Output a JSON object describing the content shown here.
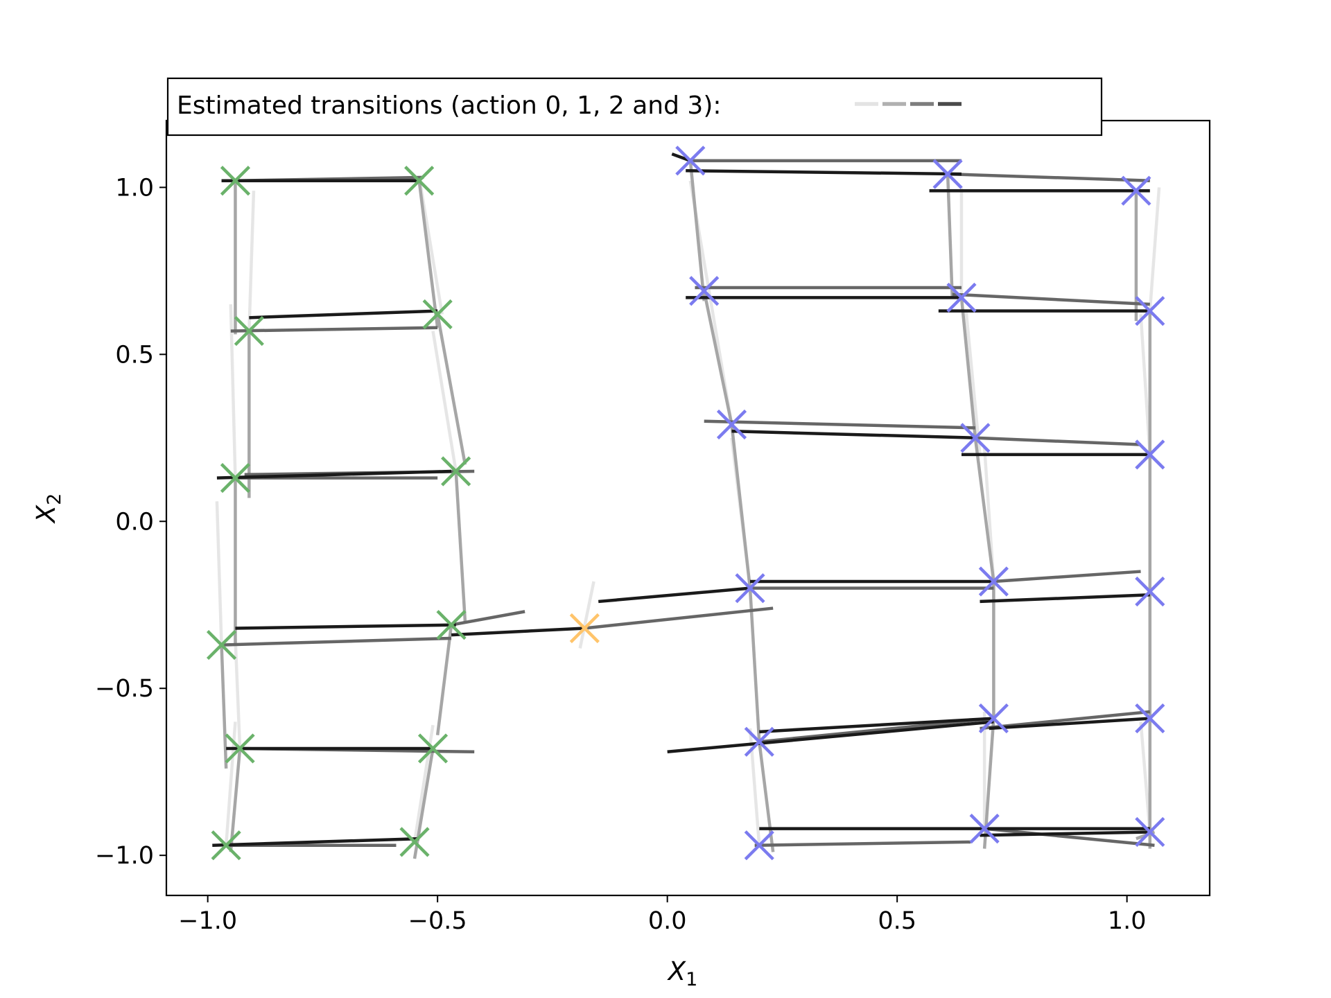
{
  "chart_data": {
    "type": "scatter",
    "title": "",
    "xlabel": "X",
    "xlabel_sub": "1",
    "ylabel": "X",
    "ylabel_sub": "2",
    "xlim": [
      -1.09,
      1.18
    ],
    "ylim": [
      -1.12,
      1.2
    ],
    "xticks": [
      -1.0,
      -0.5,
      0.0,
      0.5,
      1.0
    ],
    "xtick_labels": [
      "−1.0",
      "−0.5",
      "0.0",
      "0.5",
      "1.0"
    ],
    "yticks": [
      -1.0,
      -0.5,
      0.0,
      0.5,
      1.0
    ],
    "ytick_labels": [
      "−1.0",
      "−0.5",
      "0.0",
      "0.5",
      "1.0"
    ],
    "grid": false,
    "legend": {
      "placement": "top-left",
      "label": "Estimated transitions (action 0, 1, 2 and 3):",
      "action_colors": [
        "#e3e3e3",
        "#b0b0b0",
        "#7d7d7d",
        "#4a4a4a"
      ]
    },
    "marker_colors": {
      "green": "#6ab26a",
      "blue": "#7b7bef",
      "orange": "#ffc46a"
    },
    "action_colors": [
      "#e6e6e6",
      "#a6a6a6",
      "#666666",
      "#1a1a1a"
    ],
    "markers": [
      {
        "x": -0.94,
        "y": 1.02,
        "color": "green"
      },
      {
        "x": -0.54,
        "y": 1.02,
        "color": "green"
      },
      {
        "x": -0.91,
        "y": 0.57,
        "color": "green"
      },
      {
        "x": -0.5,
        "y": 0.62,
        "color": "green"
      },
      {
        "x": -0.94,
        "y": 0.13,
        "color": "green"
      },
      {
        "x": -0.46,
        "y": 0.15,
        "color": "green"
      },
      {
        "x": -0.97,
        "y": -0.37,
        "color": "green"
      },
      {
        "x": -0.47,
        "y": -0.31,
        "color": "green"
      },
      {
        "x": -0.93,
        "y": -0.68,
        "color": "green"
      },
      {
        "x": -0.51,
        "y": -0.68,
        "color": "green"
      },
      {
        "x": -0.96,
        "y": -0.97,
        "color": "green"
      },
      {
        "x": -0.55,
        "y": -0.96,
        "color": "green"
      },
      {
        "x": -0.18,
        "y": -0.32,
        "color": "orange"
      },
      {
        "x": 0.05,
        "y": 1.08,
        "color": "blue"
      },
      {
        "x": 0.61,
        "y": 1.04,
        "color": "blue"
      },
      {
        "x": 1.02,
        "y": 0.99,
        "color": "blue"
      },
      {
        "x": 0.08,
        "y": 0.69,
        "color": "blue"
      },
      {
        "x": 0.64,
        "y": 0.67,
        "color": "blue"
      },
      {
        "x": 1.05,
        "y": 0.63,
        "color": "blue"
      },
      {
        "x": 0.14,
        "y": 0.29,
        "color": "blue"
      },
      {
        "x": 0.67,
        "y": 0.25,
        "color": "blue"
      },
      {
        "x": 1.05,
        "y": 0.2,
        "color": "blue"
      },
      {
        "x": 0.18,
        "y": -0.2,
        "color": "blue"
      },
      {
        "x": 0.71,
        "y": -0.18,
        "color": "blue"
      },
      {
        "x": 1.05,
        "y": -0.21,
        "color": "blue"
      },
      {
        "x": 0.2,
        "y": -0.66,
        "color": "blue"
      },
      {
        "x": 0.71,
        "y": -0.59,
        "color": "blue"
      },
      {
        "x": 1.05,
        "y": -0.59,
        "color": "blue"
      },
      {
        "x": 0.2,
        "y": -0.97,
        "color": "blue"
      },
      {
        "x": 0.69,
        "y": -0.92,
        "color": "blue"
      },
      {
        "x": 1.05,
        "y": -0.93,
        "color": "blue"
      }
    ],
    "transitions": [
      {
        "action": 3,
        "x1": -0.97,
        "y1": 1.02,
        "x2": -0.54,
        "y2": 1.02
      },
      {
        "action": 2,
        "x1": -0.94,
        "y1": 1.02,
        "x2": -0.53,
        "y2": 1.03
      },
      {
        "action": 1,
        "x1": -0.94,
        "y1": 1.02,
        "x2": -0.94,
        "y2": 0.56
      },
      {
        "action": 0,
        "x1": -0.9,
        "y1": 0.99,
        "x2": -0.91,
        "y2": 0.57
      },
      {
        "action": 1,
        "x1": -0.54,
        "y1": 1.02,
        "x2": -0.5,
        "y2": 0.58
      },
      {
        "action": 0,
        "x1": -0.54,
        "y1": 1.03,
        "x2": -0.49,
        "y2": 0.62
      },
      {
        "action": 3,
        "x1": -0.91,
        "y1": 0.61,
        "x2": -0.5,
        "y2": 0.63
      },
      {
        "action": 2,
        "x1": -0.95,
        "y1": 0.57,
        "x2": -0.5,
        "y2": 0.58
      },
      {
        "action": 1,
        "x1": -0.91,
        "y1": 0.57,
        "x2": -0.91,
        "y2": 0.07
      },
      {
        "action": 0,
        "x1": -0.95,
        "y1": 0.65,
        "x2": -0.94,
        "y2": 0.13
      },
      {
        "action": 1,
        "x1": -0.5,
        "y1": 0.62,
        "x2": -0.44,
        "y2": 0.17
      },
      {
        "action": 0,
        "x1": -0.51,
        "y1": 0.57,
        "x2": -0.46,
        "y2": 0.15
      },
      {
        "action": 3,
        "x1": -0.98,
        "y1": 0.13,
        "x2": -0.47,
        "y2": 0.15
      },
      {
        "action": 2,
        "x1": -0.92,
        "y1": 0.14,
        "x2": -0.42,
        "y2": 0.15
      },
      {
        "action": 2,
        "x1": -0.94,
        "y1": 0.13,
        "x2": -0.5,
        "y2": 0.13
      },
      {
        "action": 1,
        "x1": -0.94,
        "y1": 0.13,
        "x2": -0.94,
        "y2": -0.37
      },
      {
        "action": 0,
        "x1": -0.98,
        "y1": 0.06,
        "x2": -0.97,
        "y2": -0.37
      },
      {
        "action": 1,
        "x1": -0.46,
        "y1": 0.15,
        "x2": -0.44,
        "y2": -0.3
      },
      {
        "action": 3,
        "x1": -0.94,
        "y1": -0.32,
        "x2": -0.46,
        "y2": -0.31
      },
      {
        "action": 2,
        "x1": -0.97,
        "y1": -0.37,
        "x2": -0.47,
        "y2": -0.35
      },
      {
        "action": 2,
        "x1": -0.47,
        "y1": -0.31,
        "x2": -0.31,
        "y2": -0.27
      },
      {
        "action": 3,
        "x1": -0.47,
        "y1": -0.34,
        "x2": -0.18,
        "y2": -0.32
      },
      {
        "action": 2,
        "x1": -0.18,
        "y1": -0.32,
        "x2": 0.23,
        "y2": -0.26
      },
      {
        "action": 3,
        "x1": -0.15,
        "y1": -0.24,
        "x2": 0.18,
        "y2": -0.2
      },
      {
        "action": 0,
        "x1": -0.16,
        "y1": -0.18,
        "x2": -0.19,
        "y2": -0.38
      },
      {
        "action": 1,
        "x1": -0.97,
        "y1": -0.37,
        "x2": -0.96,
        "y2": -0.74
      },
      {
        "action": 0,
        "x1": -0.94,
        "y1": -0.35,
        "x2": -0.93,
        "y2": -0.68
      },
      {
        "action": 1,
        "x1": -0.47,
        "y1": -0.31,
        "x2": -0.5,
        "y2": -0.64
      },
      {
        "action": 3,
        "x1": -0.96,
        "y1": -0.68,
        "x2": -0.51,
        "y2": -0.68
      },
      {
        "action": 2,
        "x1": -0.93,
        "y1": -0.68,
        "x2": -0.42,
        "y2": -0.69
      },
      {
        "action": 1,
        "x1": -0.93,
        "y1": -0.68,
        "x2": -0.95,
        "y2": -0.99
      },
      {
        "action": 0,
        "x1": -0.94,
        "y1": -0.6,
        "x2": -0.96,
        "y2": -0.97
      },
      {
        "action": 1,
        "x1": -0.51,
        "y1": -0.68,
        "x2": -0.55,
        "y2": -1.01
      },
      {
        "action": 0,
        "x1": -0.51,
        "y1": -0.61,
        "x2": -0.55,
        "y2": -0.96
      },
      {
        "action": 3,
        "x1": -0.99,
        "y1": -0.97,
        "x2": -0.54,
        "y2": -0.95
      },
      {
        "action": 2,
        "x1": -0.96,
        "y1": -0.97,
        "x2": -0.59,
        "y2": -0.97
      },
      {
        "action": 3,
        "x1": 0.01,
        "y1": 1.1,
        "x2": 0.05,
        "y2": 1.08
      },
      {
        "action": 2,
        "x1": 0.05,
        "y1": 1.08,
        "x2": 0.64,
        "y2": 1.08
      },
      {
        "action": 3,
        "x1": 0.04,
        "y1": 1.05,
        "x2": 0.64,
        "y2": 1.04
      },
      {
        "action": 2,
        "x1": 0.61,
        "y1": 1.04,
        "x2": 1.05,
        "y2": 1.02
      },
      {
        "action": 3,
        "x1": 0.57,
        "y1": 0.99,
        "x2": 1.05,
        "y2": 0.99
      },
      {
        "action": 1,
        "x1": 0.05,
        "y1": 1.08,
        "x2": 0.08,
        "y2": 0.66
      },
      {
        "action": 0,
        "x1": 0.05,
        "y1": 1.02,
        "x2": 0.14,
        "y2": 0.29
      },
      {
        "action": 1,
        "x1": 0.61,
        "y1": 1.04,
        "x2": 0.62,
        "y2": 0.67
      },
      {
        "action": 0,
        "x1": 0.64,
        "y1": 1.0,
        "x2": 0.64,
        "y2": 0.67
      },
      {
        "action": 1,
        "x1": 1.02,
        "y1": 0.99,
        "x2": 1.02,
        "y2": 0.6
      },
      {
        "action": 0,
        "x1": 1.07,
        "y1": 1.0,
        "x2": 1.05,
        "y2": 0.63
      },
      {
        "action": 2,
        "x1": 0.06,
        "y1": 0.7,
        "x2": 0.64,
        "y2": 0.7
      },
      {
        "action": 3,
        "x1": 0.04,
        "y1": 0.67,
        "x2": 0.64,
        "y2": 0.67
      },
      {
        "action": 2,
        "x1": 0.62,
        "y1": 0.68,
        "x2": 1.05,
        "y2": 0.65
      },
      {
        "action": 3,
        "x1": 0.59,
        "y1": 0.63,
        "x2": 1.05,
        "y2": 0.63
      },
      {
        "action": 1,
        "x1": 0.08,
        "y1": 0.69,
        "x2": 0.14,
        "y2": 0.29
      },
      {
        "action": 1,
        "x1": 0.64,
        "y1": 0.67,
        "x2": 0.67,
        "y2": 0.25
      },
      {
        "action": 0,
        "x1": 0.65,
        "y1": 0.63,
        "x2": 0.68,
        "y2": 0.2
      },
      {
        "action": 1,
        "x1": 1.05,
        "y1": 0.63,
        "x2": 1.05,
        "y2": 0.2
      },
      {
        "action": 0,
        "x1": 1.03,
        "y1": 0.62,
        "x2": 1.05,
        "y2": 0.2
      },
      {
        "action": 2,
        "x1": 0.08,
        "y1": 0.3,
        "x2": 0.67,
        "y2": 0.28
      },
      {
        "action": 3,
        "x1": 0.14,
        "y1": 0.27,
        "x2": 0.67,
        "y2": 0.25
      },
      {
        "action": 2,
        "x1": 0.67,
        "y1": 0.25,
        "x2": 1.03,
        "y2": 0.23
      },
      {
        "action": 3,
        "x1": 0.64,
        "y1": 0.2,
        "x2": 1.05,
        "y2": 0.2
      },
      {
        "action": 1,
        "x1": 0.14,
        "y1": 0.29,
        "x2": 0.18,
        "y2": -0.2
      },
      {
        "action": 0,
        "x1": 0.14,
        "y1": 0.25,
        "x2": 0.18,
        "y2": -0.2
      },
      {
        "action": 1,
        "x1": 0.67,
        "y1": 0.25,
        "x2": 0.71,
        "y2": -0.18
      },
      {
        "action": 0,
        "x1": 0.69,
        "y1": 0.22,
        "x2": 0.71,
        "y2": -0.18
      },
      {
        "action": 1,
        "x1": 1.05,
        "y1": 0.2,
        "x2": 1.05,
        "y2": -0.21
      },
      {
        "action": 3,
        "x1": 0.18,
        "y1": -0.18,
        "x2": 0.71,
        "y2": -0.18
      },
      {
        "action": 2,
        "x1": 0.18,
        "y1": -0.2,
        "x2": 0.71,
        "y2": -0.2
      },
      {
        "action": 2,
        "x1": 0.71,
        "y1": -0.18,
        "x2": 1.03,
        "y2": -0.15
      },
      {
        "action": 3,
        "x1": 0.68,
        "y1": -0.24,
        "x2": 1.05,
        "y2": -0.22
      },
      {
        "action": 1,
        "x1": 0.18,
        "y1": -0.2,
        "x2": 0.2,
        "y2": -0.66
      },
      {
        "action": 1,
        "x1": 0.71,
        "y1": -0.18,
        "x2": 0.71,
        "y2": -0.59
      },
      {
        "action": 1,
        "x1": 1.05,
        "y1": -0.21,
        "x2": 1.05,
        "y2": -0.59
      },
      {
        "action": 3,
        "x1": 0.0,
        "y1": -0.69,
        "x2": 0.71,
        "y2": -0.6
      },
      {
        "action": 3,
        "x1": 0.2,
        "y1": -0.63,
        "x2": 0.71,
        "y2": -0.59
      },
      {
        "action": 2,
        "x1": 0.2,
        "y1": -0.66,
        "x2": 0.71,
        "y2": -0.59
      },
      {
        "action": 2,
        "x1": 0.68,
        "y1": -0.62,
        "x2": 1.05,
        "y2": -0.57
      },
      {
        "action": 3,
        "x1": 0.7,
        "y1": -0.62,
        "x2": 1.05,
        "y2": -0.59
      },
      {
        "action": 1,
        "x1": 0.2,
        "y1": -0.66,
        "x2": 0.23,
        "y2": -0.99
      },
      {
        "action": 0,
        "x1": 0.18,
        "y1": -0.62,
        "x2": 0.2,
        "y2": -0.97
      },
      {
        "action": 1,
        "x1": 0.71,
        "y1": -0.59,
        "x2": 0.69,
        "y2": -0.98
      },
      {
        "action": 0,
        "x1": 0.69,
        "y1": -0.57,
        "x2": 0.69,
        "y2": -0.92
      },
      {
        "action": 1,
        "x1": 1.05,
        "y1": -0.59,
        "x2": 1.05,
        "y2": -0.98
      },
      {
        "action": 0,
        "x1": 1.03,
        "y1": -0.6,
        "x2": 1.05,
        "y2": -0.93
      },
      {
        "action": 3,
        "x1": 0.2,
        "y1": -0.92,
        "x2": 1.05,
        "y2": -0.92
      },
      {
        "action": 2,
        "x1": 0.19,
        "y1": -0.97,
        "x2": 0.66,
        "y2": -0.96
      },
      {
        "action": 2,
        "x1": 0.69,
        "y1": -0.92,
        "x2": 1.06,
        "y2": -0.97
      },
      {
        "action": 3,
        "x1": 0.68,
        "y1": -0.94,
        "x2": 1.05,
        "y2": -0.93
      },
      {
        "action": 1,
        "x1": 1.06,
        "y1": -0.93,
        "x2": 1.02,
        "y2": -0.95
      }
    ]
  }
}
